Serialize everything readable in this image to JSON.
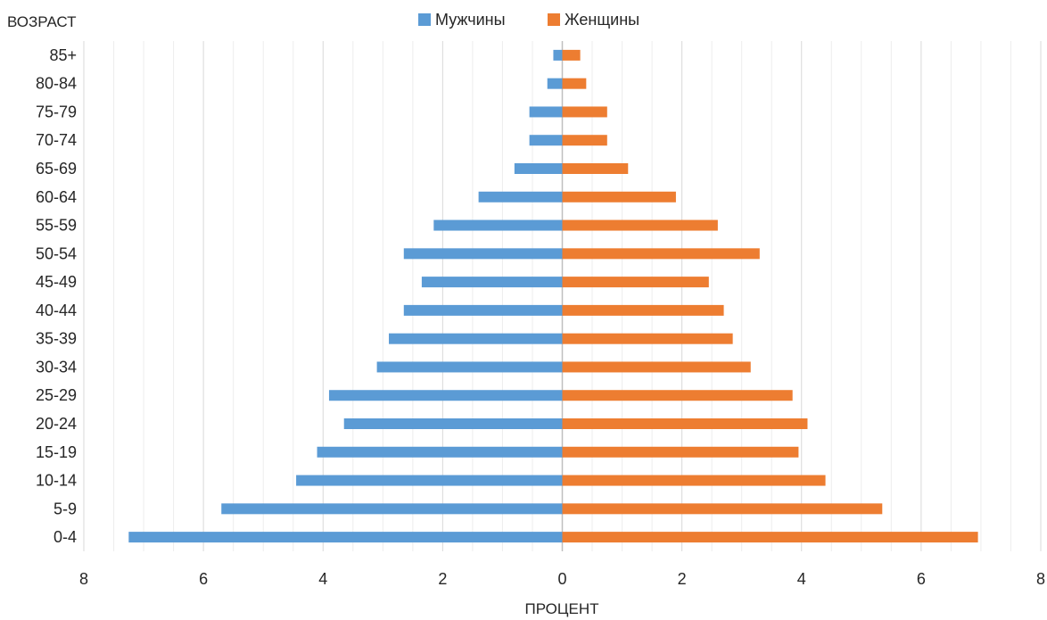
{
  "chart_data": {
    "type": "bar",
    "orientation": "horizontal",
    "layout": "population-pyramid",
    "y_axis_title": "ВОЗРАСТ",
    "x_axis_title": "ПРОЦЕНТ",
    "categories": [
      "0-4",
      "5-9",
      "10-14",
      "15-19",
      "20-24",
      "25-29",
      "30-34",
      "35-39",
      "40-44",
      "45-49",
      "50-54",
      "55-59",
      "60-64",
      "65-69",
      "70-74",
      "75-79",
      "80-84",
      "85+"
    ],
    "series": [
      {
        "name": "Мужчины",
        "color": "#5b9bd5",
        "side": "left",
        "values": [
          7.25,
          5.7,
          4.45,
          4.1,
          3.65,
          3.9,
          3.1,
          2.9,
          2.65,
          2.35,
          2.65,
          2.15,
          1.4,
          0.8,
          0.55,
          0.55,
          0.25,
          0.15
        ]
      },
      {
        "name": "Женщины",
        "color": "#ed7d31",
        "side": "right",
        "values": [
          6.95,
          5.35,
          4.4,
          3.95,
          4.1,
          3.85,
          3.15,
          2.85,
          2.7,
          2.45,
          3.3,
          2.6,
          1.9,
          1.1,
          0.75,
          0.75,
          0.4,
          0.3
        ]
      }
    ],
    "xlim": [
      -8,
      8
    ],
    "x_ticks": [
      {
        "value": -8,
        "label": "8"
      },
      {
        "value": -6,
        "label": "6"
      },
      {
        "value": -4,
        "label": "4"
      },
      {
        "value": -2,
        "label": "2"
      },
      {
        "value": 0,
        "label": "0"
      },
      {
        "value": 2,
        "label": "2"
      },
      {
        "value": 4,
        "label": "4"
      },
      {
        "value": 6,
        "label": "6"
      },
      {
        "value": 8,
        "label": "8"
      }
    ],
    "minor_tick_step": 0.5,
    "grid": true,
    "legend_position": "top-center"
  }
}
